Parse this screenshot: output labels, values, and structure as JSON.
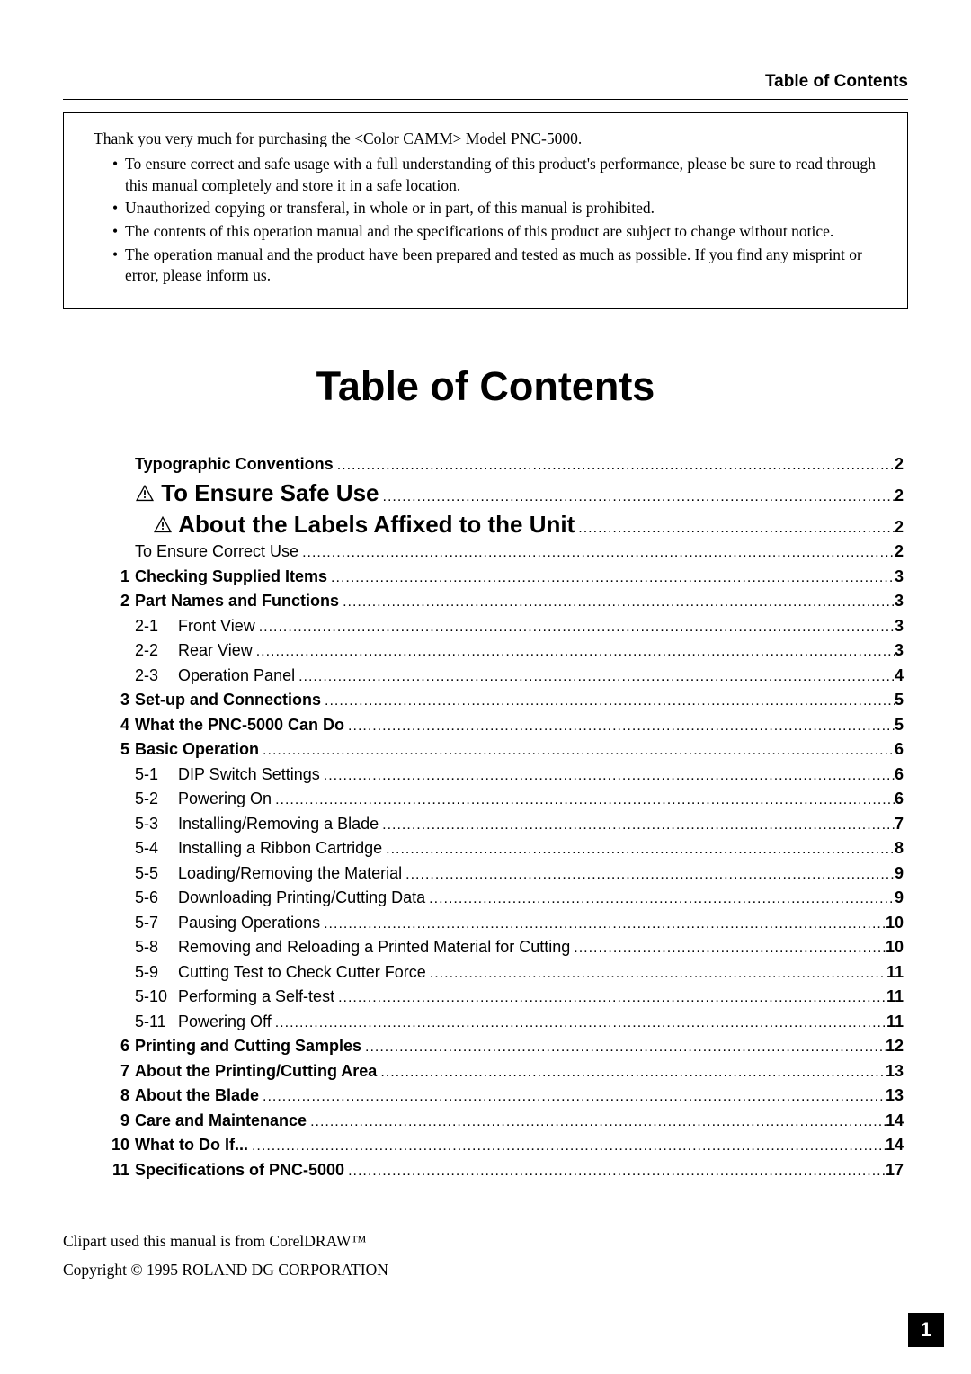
{
  "header": {
    "title": "Table of Contents"
  },
  "intro": {
    "lead": "Thank you very much for purchasing the <Color CAMM> Model PNC-5000.",
    "bullets": [
      "To ensure correct and safe usage with a full understanding of this product's performance, please be sure to read through this manual completely and store it in a safe location.",
      "Unauthorized copying or transferal, in whole or in part, of this manual is prohibited.",
      "The contents of this operation manual and the specifications of this product are subject to change without notice.",
      "The operation manual and the product have been prepared and tested as much as possible.  If you find any misprint or error, please inform us."
    ]
  },
  "mainTitle": "Table of Contents",
  "toc": [
    {
      "type": "chapter",
      "num": "",
      "title": "Typographic Conventions",
      "page": "2",
      "bold": true
    },
    {
      "type": "big",
      "num": "",
      "title": "To Ensure Safe Use",
      "page": "2",
      "warn": true
    },
    {
      "type": "big",
      "num": "",
      "title": "About the Labels Affixed to the Unit",
      "page": "2",
      "warn": true,
      "indentBig": true
    },
    {
      "type": "sub-plain",
      "title": "To Ensure Correct Use",
      "page": "2"
    },
    {
      "type": "chapter",
      "num": "1",
      "title": "Checking Supplied Items",
      "page": "3",
      "bold": true
    },
    {
      "type": "chapter",
      "num": "2",
      "title": "Part Names and Functions",
      "page": "3",
      "bold": true
    },
    {
      "type": "sub",
      "sub": "2-1",
      "title": "Front View",
      "page": "3"
    },
    {
      "type": "sub",
      "sub": "2-2",
      "title": "Rear View",
      "page": "3"
    },
    {
      "type": "sub",
      "sub": "2-3",
      "title": "Operation Panel",
      "page": "4"
    },
    {
      "type": "chapter",
      "num": "3",
      "title": "Set-up and Connections",
      "page": "5",
      "bold": true
    },
    {
      "type": "chapter",
      "num": "4",
      "title": "What the PNC-5000 Can Do",
      "page": "5",
      "bold": true
    },
    {
      "type": "chapter",
      "num": "5",
      "title": "Basic Operation",
      "page": "6",
      "bold": true
    },
    {
      "type": "sub",
      "sub": "5-1",
      "title": "DIP Switch Settings",
      "page": "6"
    },
    {
      "type": "sub",
      "sub": "5-2",
      "title": "Powering On",
      "page": "6"
    },
    {
      "type": "sub",
      "sub": "5-3",
      "title": "Installing/Removing a Blade",
      "page": "7"
    },
    {
      "type": "sub",
      "sub": "5-4",
      "title": "Installing a Ribbon Cartridge",
      "page": "8"
    },
    {
      "type": "sub",
      "sub": "5-5",
      "title": "Loading/Removing the Material",
      "page": "9"
    },
    {
      "type": "sub",
      "sub": "5-6",
      "title": "Downloading Printing/Cutting Data",
      "page": "9"
    },
    {
      "type": "sub",
      "sub": "5-7",
      "title": "Pausing Operations",
      "page": "10"
    },
    {
      "type": "sub",
      "sub": "5-8",
      "title": "Removing and Reloading a Printed Material for Cutting",
      "page": "10"
    },
    {
      "type": "sub",
      "sub": "5-9",
      "title": "Cutting Test to Check Cutter Force",
      "page": "11"
    },
    {
      "type": "sub",
      "sub": "5-10",
      "title": "Performing a Self-test",
      "page": "11"
    },
    {
      "type": "sub",
      "sub": "5-11",
      "title": "Powering Off",
      "page": "11"
    },
    {
      "type": "chapter",
      "num": "6",
      "title": "Printing and Cutting Samples",
      "page": "12",
      "bold": true
    },
    {
      "type": "chapter",
      "num": "7",
      "title": "About the Printing/Cutting Area",
      "page": "13",
      "bold": true
    },
    {
      "type": "chapter",
      "num": "8",
      "title": "About the Blade",
      "page": "13",
      "bold": true
    },
    {
      "type": "chapter",
      "num": "9",
      "title": "Care and Maintenance",
      "page": "14",
      "bold": true
    },
    {
      "type": "chapter",
      "num": "10",
      "title": "What to Do If...",
      "page": "14",
      "bold": true
    },
    {
      "type": "chapter",
      "num": "11",
      "title": "Specifications of PNC-5000",
      "page": "17",
      "bold": true
    }
  ],
  "footer": {
    "line1": "Clipart used this manual is from CorelDRAW™",
    "line2": "Copyright © 1995 ROLAND DG CORPORATION"
  },
  "pageNumber": "1",
  "styles": {
    "body_font": "Times New Roman",
    "sans_font": "Arial",
    "title_fontsize": 45,
    "big_toc_fontsize": 26,
    "toc_fontsize": 18,
    "intro_fontsize": 17.5,
    "text_color": "#000000",
    "background_color": "#ffffff",
    "page_box_bg": "#000000",
    "page_box_fg": "#ffffff"
  }
}
